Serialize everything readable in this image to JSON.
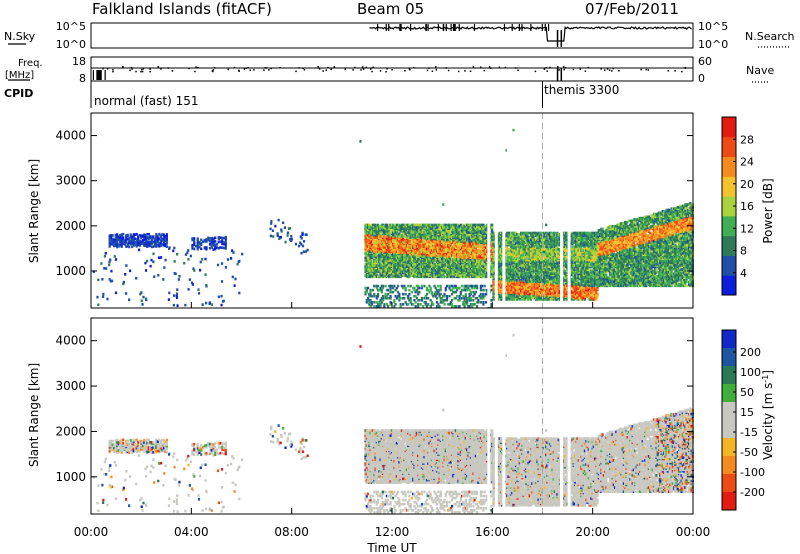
{
  "header": {
    "site": "Falkland Islands (fitACF)",
    "beam": "Beam 05",
    "date": "07/Feb/2011"
  },
  "strips": {
    "nsky_label": "N.Sky",
    "nsky_ticks": [
      "10^5",
      "10^0"
    ],
    "nsearch_label": "N.Search",
    "nsearch_ticks": [
      "10^5",
      "10^0"
    ],
    "freq_label_1": "Freq.",
    "freq_label_2": "[MHz]",
    "freq_ticks": [
      "18",
      "8"
    ],
    "nave_label": "Nave",
    "nave_ticks": [
      "60",
      "0"
    ],
    "cpid_label": "CPID",
    "cpid_modes": [
      "normal (fast) 151",
      "themis 3300"
    ]
  },
  "colors": {
    "power_scale": [
      "#0a1edc",
      "#1f4fa8",
      "#2d7a5a",
      "#3fae55",
      "#a7d43c",
      "#f4c22c",
      "#f58a1f",
      "#ee4a16",
      "#e31b10"
    ],
    "velocity_scale": [
      "#1028c8",
      "#1d55a0",
      "#2a7a5a",
      "#3fae3c",
      "#c8c8c0",
      "#c8c8c0",
      "#f4b526",
      "#f58a1f",
      "#ee4a16",
      "#e31b10"
    ]
  },
  "chart_data": [
    {
      "type": "heatmap",
      "panel": "power",
      "ylabel": "Slant Range [km]",
      "yticks": [
        1000,
        2000,
        3000,
        4000
      ],
      "ylim": [
        180,
        4500
      ],
      "xlim": [
        0,
        24
      ],
      "colorbar_label": "Power [dB]",
      "colorbar_ticks": [
        "28",
        "24",
        "20",
        "16",
        "12",
        "8",
        "4"
      ],
      "colorbar_range": [
        0,
        32
      ]
    },
    {
      "type": "heatmap",
      "panel": "velocity",
      "ylabel": "Slant Range [km]",
      "yticks": [
        1000,
        2000,
        3000,
        4000
      ],
      "ylim": [
        180,
        4500
      ],
      "xlim": [
        0,
        24
      ],
      "colorbar_label": "Velocity [m s^-1]",
      "colorbar_ticks": [
        "200",
        "100",
        "50",
        "15",
        "-15",
        "-50",
        "-100",
        "-200"
      ]
    }
  ],
  "xaxis": {
    "ticks": [
      "00:00",
      "04:00",
      "08:00",
      "12:00",
      "16:00",
      "20:00",
      "00:00"
    ],
    "tick_hours": [
      0,
      4,
      8,
      12,
      16,
      20,
      24
    ],
    "label": "Time UT"
  },
  "mode_change_hour": 18.0
}
